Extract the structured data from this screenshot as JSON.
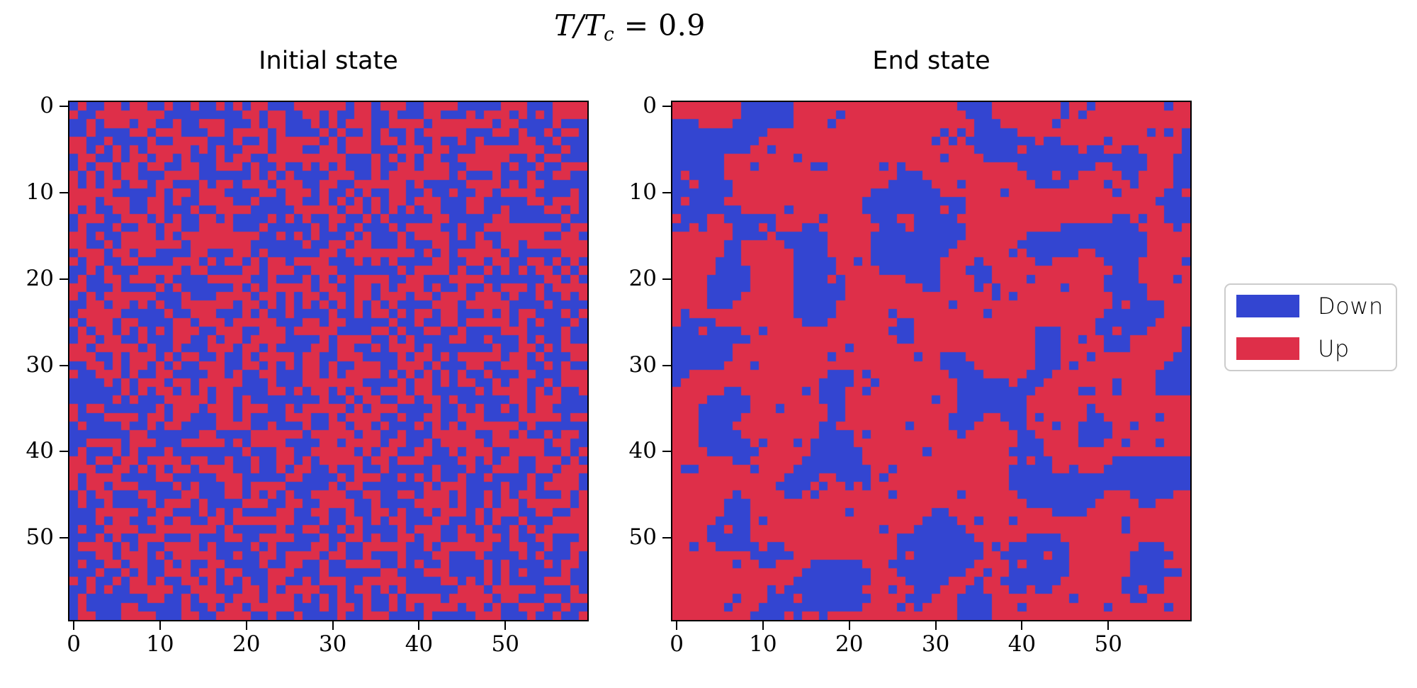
{
  "chart_data": {
    "type": "heatmap",
    "suptitle": "T/T_c = 0.9",
    "suptitle_parts": {
      "prefix": "T/T",
      "subscript": "c",
      "suffix": " = 0.9"
    },
    "grid_size": 60,
    "x_ticks": [
      0,
      10,
      20,
      30,
      40,
      50
    ],
    "y_ticks": [
      0,
      10,
      20,
      30,
      40,
      50
    ],
    "x_range": [
      -0.5,
      59.5
    ],
    "y_range": [
      59.5,
      -0.5
    ],
    "grid": "off",
    "legend_position": "center right, outside axes",
    "colors": {
      "down_blue": "#3345d1",
      "up_red": "#de2f49",
      "spine": "#000000",
      "legend_border": "#cccccc",
      "background": "#ffffff"
    },
    "legend": {
      "entries": [
        {
          "label": "Down",
          "value": 0,
          "color": "#3345d1"
        },
        {
          "label": "Up",
          "value": 1,
          "color": "#de2f49"
        }
      ]
    },
    "panels": [
      {
        "id": "initial-state",
        "title": "Initial state",
        "pattern": "uncorrelated random spins (salt-and-pepper)",
        "approx_fraction_up": 0.5,
        "generator": {
          "seed": 1911,
          "p_up": 0.5,
          "smooth_passes": 0,
          "noise": 0
        }
      },
      {
        "id": "end-state",
        "title": "End state",
        "pattern": "coarsened ferromagnetic domains, large blue clusters in red majority",
        "approx_fraction_up": 0.62,
        "generator": {
          "seed": 80871,
          "p_up": 0.535,
          "smooth_passes": 5,
          "noise": 0.045
        }
      }
    ]
  }
}
